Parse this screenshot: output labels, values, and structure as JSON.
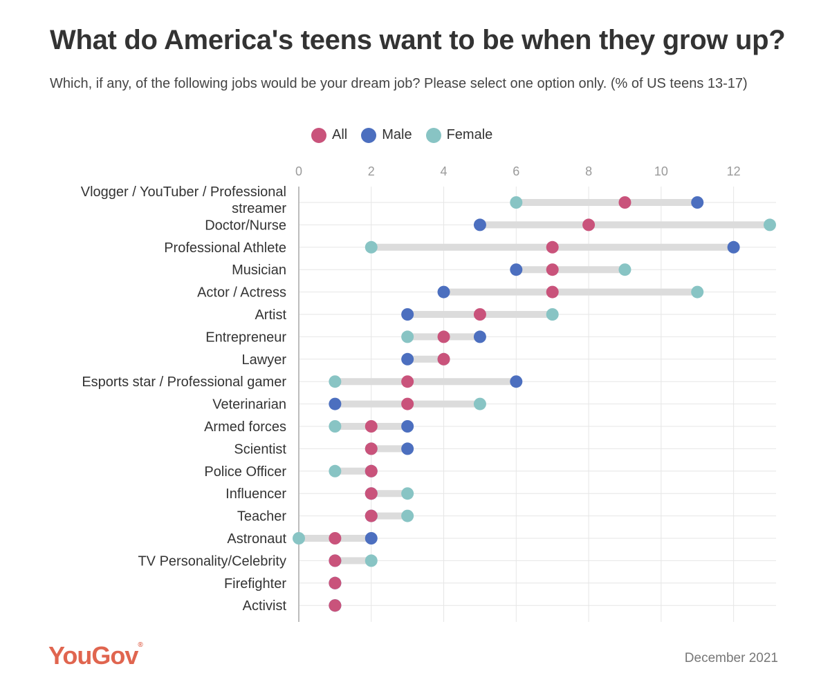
{
  "header": {
    "title": "What do America's teens want to be when they grow up?",
    "subtitle": "Which, if any, of the following jobs would be your dream job? Please select one option only. (% of US teens 13-17)"
  },
  "legend": [
    {
      "label": "All",
      "color": "#c9537b"
    },
    {
      "label": "Male",
      "color": "#4c6fbf"
    },
    {
      "label": "Female",
      "color": "#88c4c4"
    }
  ],
  "chart_data": {
    "type": "dot",
    "title": "What do America's teens want to be when they grow up?",
    "xlim": [
      0,
      13
    ],
    "xticks": [
      0,
      2,
      4,
      6,
      8,
      10,
      12
    ],
    "grid": true,
    "legend_position": "top-center",
    "categories": [
      [
        "Vlogger / YouTuber / Professional",
        "streamer"
      ],
      [
        "Doctor/Nurse"
      ],
      [
        "Professional Athlete"
      ],
      [
        "Musician"
      ],
      [
        "Actor / Actress"
      ],
      [
        "Artist"
      ],
      [
        "Entrepreneur"
      ],
      [
        "Lawyer"
      ],
      [
        "Esports star / Professional gamer"
      ],
      [
        "Veterinarian"
      ],
      [
        "Armed forces"
      ],
      [
        "Scientist"
      ],
      [
        "Police Officer"
      ],
      [
        "Influencer"
      ],
      [
        "Teacher"
      ],
      [
        "Astronaut"
      ],
      [
        "TV Personality/Celebrity"
      ],
      [
        "Firefighter"
      ],
      [
        "Activist"
      ]
    ],
    "series": [
      {
        "name": "All",
        "color": "#c9537b",
        "values": [
          9,
          8,
          7,
          7,
          7,
          5,
          4,
          4,
          3,
          3,
          2,
          2,
          2,
          2,
          2,
          1,
          1,
          1,
          1
        ]
      },
      {
        "name": "Male",
        "color": "#4c6fbf",
        "values": [
          11,
          5,
          12,
          6,
          4,
          3,
          5,
          3,
          6,
          1,
          3,
          3,
          2,
          2,
          2,
          2,
          1,
          1,
          1
        ]
      },
      {
        "name": "Female",
        "color": "#88c4c4",
        "values": [
          6,
          13,
          2,
          9,
          11,
          7,
          3,
          4,
          1,
          5,
          1,
          2,
          1,
          3,
          3,
          0,
          2,
          1,
          1
        ]
      }
    ]
  },
  "footer": {
    "brand": "YouGov",
    "brand_mark": "®",
    "brand_color": "#e0654f",
    "date": "December 2021"
  }
}
